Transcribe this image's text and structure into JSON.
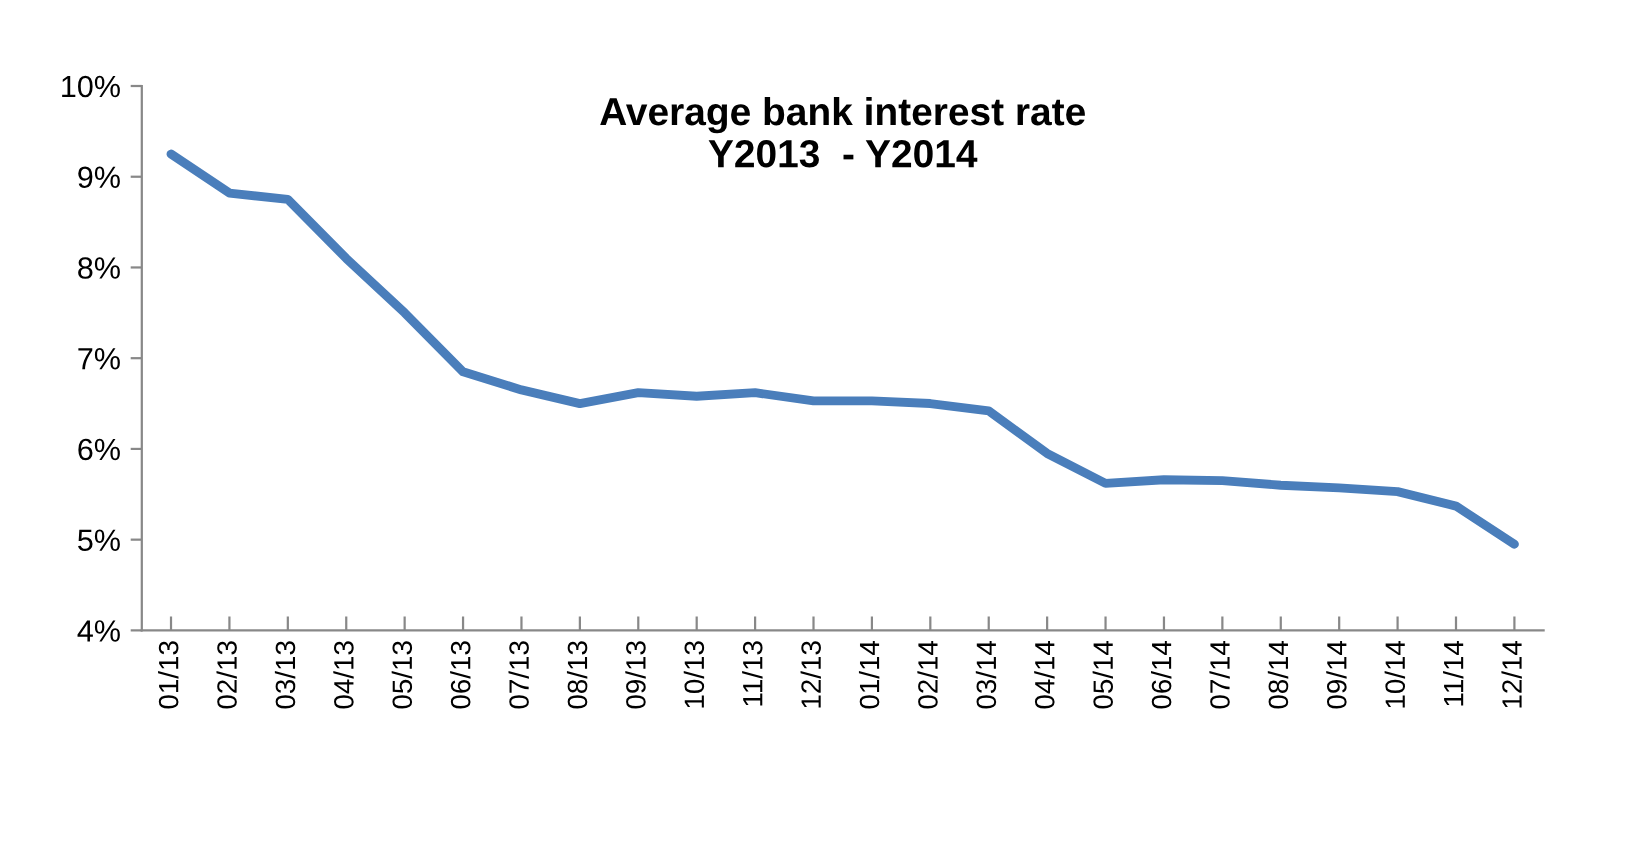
{
  "chart_data": {
    "type": "line",
    "title": "Average bank interest rate\nY2013  - Y2014",
    "categories": [
      "01/13",
      "02/13",
      "03/13",
      "04/13",
      "05/13",
      "06/13",
      "07/13",
      "08/13",
      "09/13",
      "10/13",
      "11/13",
      "12/13",
      "01/14",
      "02/14",
      "03/14",
      "04/14",
      "05/14",
      "06/14",
      "07/14",
      "08/14",
      "09/14",
      "10/14",
      "11/14",
      "12/14"
    ],
    "series": [
      {
        "color": "#4a7ebb",
        "values": [
          9.25,
          8.82,
          8.75,
          8.1,
          7.5,
          6.85,
          6.65,
          6.5,
          6.62,
          6.58,
          6.62,
          6.53,
          6.53,
          6.5,
          6.42,
          5.95,
          5.62,
          5.66,
          5.65,
          5.6,
          5.57,
          5.53,
          5.37,
          4.95
        ]
      }
    ],
    "ylim": [
      4,
      10
    ],
    "yticks": [
      {
        "value": 4,
        "label": "4%"
      },
      {
        "value": 5,
        "label": "5%"
      },
      {
        "value": 6,
        "label": "6%"
      },
      {
        "value": 7,
        "label": "7%"
      },
      {
        "value": 8,
        "label": "8%"
      },
      {
        "value": 9,
        "label": "9%"
      },
      {
        "value": 10,
        "label": "10%"
      }
    ],
    "marker": "none",
    "line_style": "solid"
  }
}
